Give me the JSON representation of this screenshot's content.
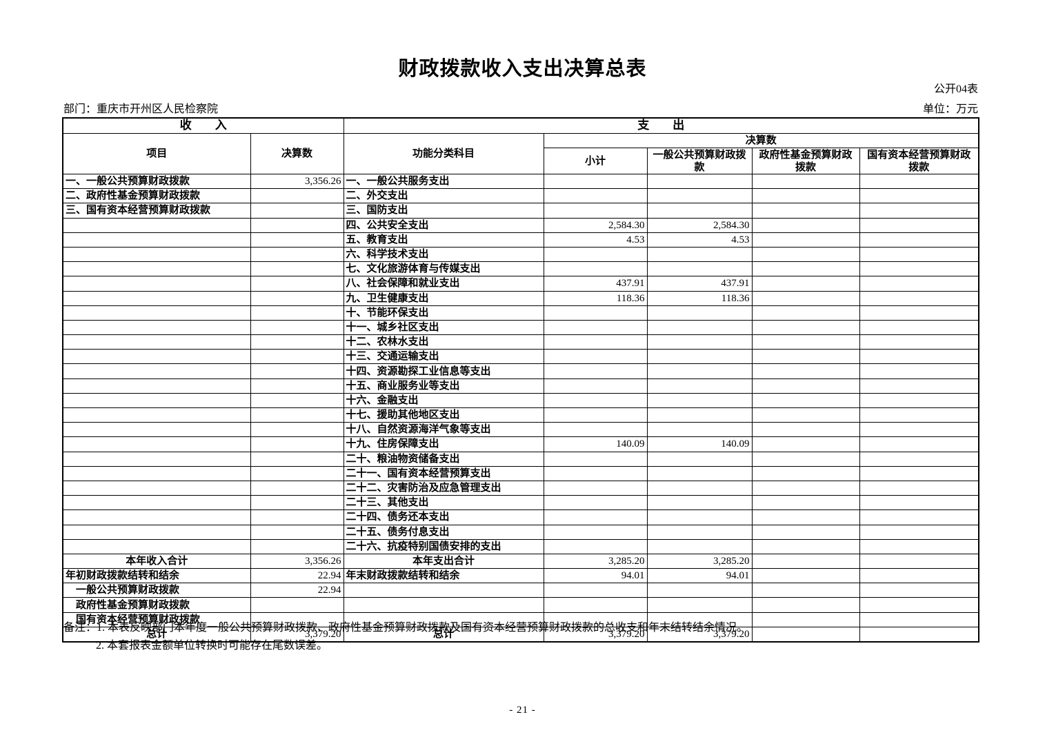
{
  "page": {
    "title": "财政拨款收入支出决算总表",
    "table_code": "公开04表",
    "department": "部门：重庆市开州区人民检察院",
    "unit": "单位：万元",
    "page_number": "- 21 -"
  },
  "notes": {
    "line1": "备注：1. 本表反映部门本年度一般公共预算财政拨款、政府性基金预算财政拨款及国有资本经营预算财政拨款的总收支和年末结转结余情况。",
    "line2": "2. 本套报表金额单位转换时可能存在尾数误差。"
  },
  "table": {
    "headers": {
      "income_section": "收　　入",
      "expense_section": "支　　出",
      "item": "项目",
      "income_final": "决算数",
      "functional_category": "功能分类科目",
      "expense_final": "决算数",
      "subtotal": "小计",
      "general_budget": "一般公共预算财政拨\n款",
      "gov_fund_budget": "政府性基金预算财政\n拨款",
      "state_capital_budget": "国有资本经营预算财政\n拨款"
    },
    "rows": [
      {
        "i": "一、一般公共预算财政拨款",
        "iv": "3,356.26",
        "e": "一、一般公共服务支出",
        "s": "",
        "g": "",
        "f": "",
        "c": ""
      },
      {
        "i": "二、政府性基金预算财政拨款",
        "iv": "",
        "e": "二、外交支出",
        "s": "",
        "g": "",
        "f": "",
        "c": ""
      },
      {
        "i": "三、国有资本经营预算财政拨款",
        "iv": "",
        "e": "三、国防支出",
        "s": "",
        "g": "",
        "f": "",
        "c": ""
      },
      {
        "i": "",
        "iv": "",
        "e": "四、公共安全支出",
        "s": "2,584.30",
        "g": "2,584.30",
        "f": "",
        "c": ""
      },
      {
        "i": "",
        "iv": "",
        "e": "五、教育支出",
        "s": "4.53",
        "g": "4.53",
        "f": "",
        "c": ""
      },
      {
        "i": "",
        "iv": "",
        "e": "六、科学技术支出",
        "s": "",
        "g": "",
        "f": "",
        "c": ""
      },
      {
        "i": "",
        "iv": "",
        "e": "七、文化旅游体育与传媒支出",
        "s": "",
        "g": "",
        "f": "",
        "c": ""
      },
      {
        "i": "",
        "iv": "",
        "e": "八、社会保障和就业支出",
        "s": "437.91",
        "g": "437.91",
        "f": "",
        "c": ""
      },
      {
        "i": "",
        "iv": "",
        "e": "九、卫生健康支出",
        "s": "118.36",
        "g": "118.36",
        "f": "",
        "c": ""
      },
      {
        "i": "",
        "iv": "",
        "e": "十、节能环保支出",
        "s": "",
        "g": "",
        "f": "",
        "c": ""
      },
      {
        "i": "",
        "iv": "",
        "e": "十一、城乡社区支出",
        "s": "",
        "g": "",
        "f": "",
        "c": ""
      },
      {
        "i": "",
        "iv": "",
        "e": "十二、农林水支出",
        "s": "",
        "g": "",
        "f": "",
        "c": ""
      },
      {
        "i": "",
        "iv": "",
        "e": "十三、交通运输支出",
        "s": "",
        "g": "",
        "f": "",
        "c": ""
      },
      {
        "i": "",
        "iv": "",
        "e": "十四、资源勘探工业信息等支出",
        "s": "",
        "g": "",
        "f": "",
        "c": ""
      },
      {
        "i": "",
        "iv": "",
        "e": "十五、商业服务业等支出",
        "s": "",
        "g": "",
        "f": "",
        "c": ""
      },
      {
        "i": "",
        "iv": "",
        "e": "十六、金融支出",
        "s": "",
        "g": "",
        "f": "",
        "c": ""
      },
      {
        "i": "",
        "iv": "",
        "e": "十七、援助其他地区支出",
        "s": "",
        "g": "",
        "f": "",
        "c": ""
      },
      {
        "i": "",
        "iv": "",
        "e": "十八、自然资源海洋气象等支出",
        "s": "",
        "g": "",
        "f": "",
        "c": ""
      },
      {
        "i": "",
        "iv": "",
        "e": "十九、住房保障支出",
        "s": "140.09",
        "g": "140.09",
        "f": "",
        "c": ""
      },
      {
        "i": "",
        "iv": "",
        "e": "二十、粮油物资储备支出",
        "s": "",
        "g": "",
        "f": "",
        "c": ""
      },
      {
        "i": "",
        "iv": "",
        "e": "二十一、国有资本经营预算支出",
        "s": "",
        "g": "",
        "f": "",
        "c": ""
      },
      {
        "i": "",
        "iv": "",
        "e": "二十二、灾害防治及应急管理支出",
        "s": "",
        "g": "",
        "f": "",
        "c": ""
      },
      {
        "i": "",
        "iv": "",
        "e": "二十三、其他支出",
        "s": "",
        "g": "",
        "f": "",
        "c": ""
      },
      {
        "i": "",
        "iv": "",
        "e": "二十四、债务还本支出",
        "s": "",
        "g": "",
        "f": "",
        "c": ""
      },
      {
        "i": "",
        "iv": "",
        "e": "二十五、债务付息支出",
        "s": "",
        "g": "",
        "f": "",
        "c": ""
      },
      {
        "i": "",
        "iv": "",
        "e": "二十六、抗疫特别国债安排的支出",
        "s": "",
        "g": "",
        "f": "",
        "c": ""
      },
      {
        "i": "本年收入合计",
        "ic": true,
        "iv": "3,356.26",
        "e": "本年支出合计",
        "ec": true,
        "s": "3,285.20",
        "g": "3,285.20",
        "f": "",
        "c": ""
      },
      {
        "i": "年初财政拨款结转和结余",
        "iv": "22.94",
        "e": "年末财政拨款结转和结余",
        "s": "94.01",
        "g": "94.01",
        "f": "",
        "c": ""
      },
      {
        "i": "一般公共预算财政拨款",
        "ind": true,
        "iv": "22.94",
        "e": "",
        "s": "",
        "g": "",
        "f": "",
        "c": ""
      },
      {
        "i": "政府性基金预算财政拨款",
        "ind": true,
        "iv": "",
        "e": "",
        "s": "",
        "g": "",
        "f": "",
        "c": ""
      },
      {
        "i": "国有资本经营预算财政拨款",
        "ind": true,
        "iv": "",
        "e": "",
        "s": "",
        "g": "",
        "f": "",
        "c": ""
      },
      {
        "i": "总计",
        "ic": true,
        "iv": "3,379.20",
        "e": "总计",
        "ec": true,
        "s": "3,379.20",
        "g": "3,379.20",
        "f": "",
        "c": ""
      }
    ]
  }
}
